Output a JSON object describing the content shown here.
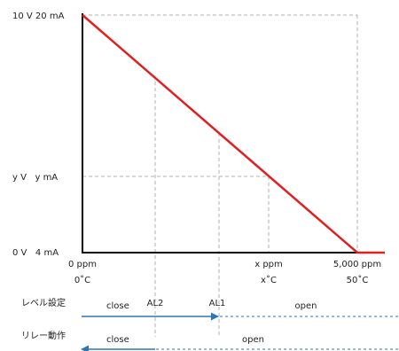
{
  "y_axis_labels": {
    "top": "10 V  20 mA",
    "mid": "y V   y mA",
    "bottom": "0 V   4 mA"
  },
  "x_axis_labels": {
    "start_ppm": "0 ppm",
    "start_temp": "0˚C",
    "mid_ppm": "x ppm",
    "mid_temp": "x˚C",
    "end_ppm": "5,000 ppm",
    "end_temp": "50˚C"
  },
  "level_row": {
    "label": "レベル設定",
    "close": "close",
    "al2": "AL2",
    "al1": "AL1",
    "open": "open"
  },
  "relay_row": {
    "label": "リレー動作",
    "close": "close",
    "open": "open"
  },
  "colors": {
    "line": "#e02020",
    "arrow": "#2e75b6",
    "grid": "#b0b0b0",
    "axis": "#000000"
  },
  "chart_data": {
    "type": "line",
    "series": [
      {
        "x": [
          0,
          5000,
          5500
        ],
        "y": [
          20,
          4,
          4
        ]
      }
    ],
    "xlim": [
      0,
      5500
    ],
    "ylim": [
      4,
      20
    ]
  }
}
